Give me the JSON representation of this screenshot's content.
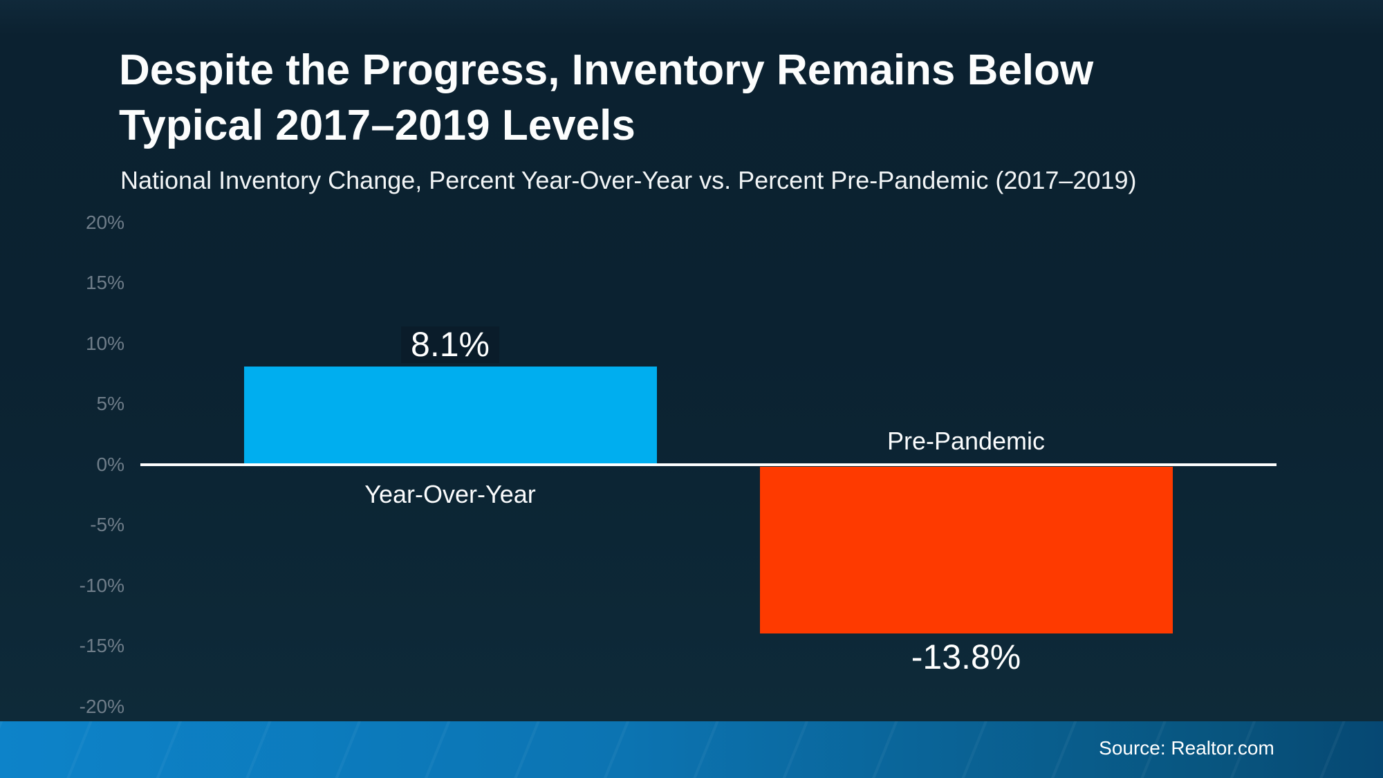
{
  "title": {
    "line1": "Despite the Progress, Inventory Remains Below",
    "line2": "Typical 2017–2019 Levels"
  },
  "subtitle": "National Inventory Change, Percent Year-Over-Year vs. Percent Pre-Pandemic (2017–2019)",
  "footer": {
    "source": "Source: Realtor.com"
  },
  "colors": {
    "background_top": "#10293A",
    "background_main": "#0B2231",
    "background_bottom": "#0E2A39",
    "axis_line": "#FFFFFF",
    "tick_label": "#6F7D89",
    "bar_positive": "#00AEEF",
    "bar_negative": "#FE3A00",
    "value_label_box": "#0A1C2A",
    "footer_bar_left": "#0D83C9",
    "footer_bar_right": "#064873",
    "text": "#FFFFFF"
  },
  "chart_data": {
    "type": "bar",
    "title": "Despite the Progress, Inventory Remains Below Typical 2017–2019 Levels",
    "subtitle": "National Inventory Change, Percent Year-Over-Year vs. Percent Pre-Pandemic (2017–2019)",
    "categories": [
      "Year-Over-Year",
      "Pre-Pandemic"
    ],
    "values": [
      8.1,
      -13.8
    ],
    "value_labels": [
      "8.1%",
      "-13.8%"
    ],
    "series_colors": [
      "#00AEEF",
      "#FE3A00"
    ],
    "xlabel": "",
    "ylabel": "",
    "ylim": [
      -20,
      20
    ],
    "ytick_interval": 5,
    "yticks": [
      "20%",
      "15%",
      "10%",
      "5%",
      "0%",
      "-5%",
      "-10%",
      "-15%",
      "-20%"
    ],
    "ytick_values": [
      20,
      15,
      10,
      5,
      0,
      -5,
      -10,
      -15,
      -20
    ],
    "grid": false,
    "legend": "none",
    "baseline": 0
  }
}
